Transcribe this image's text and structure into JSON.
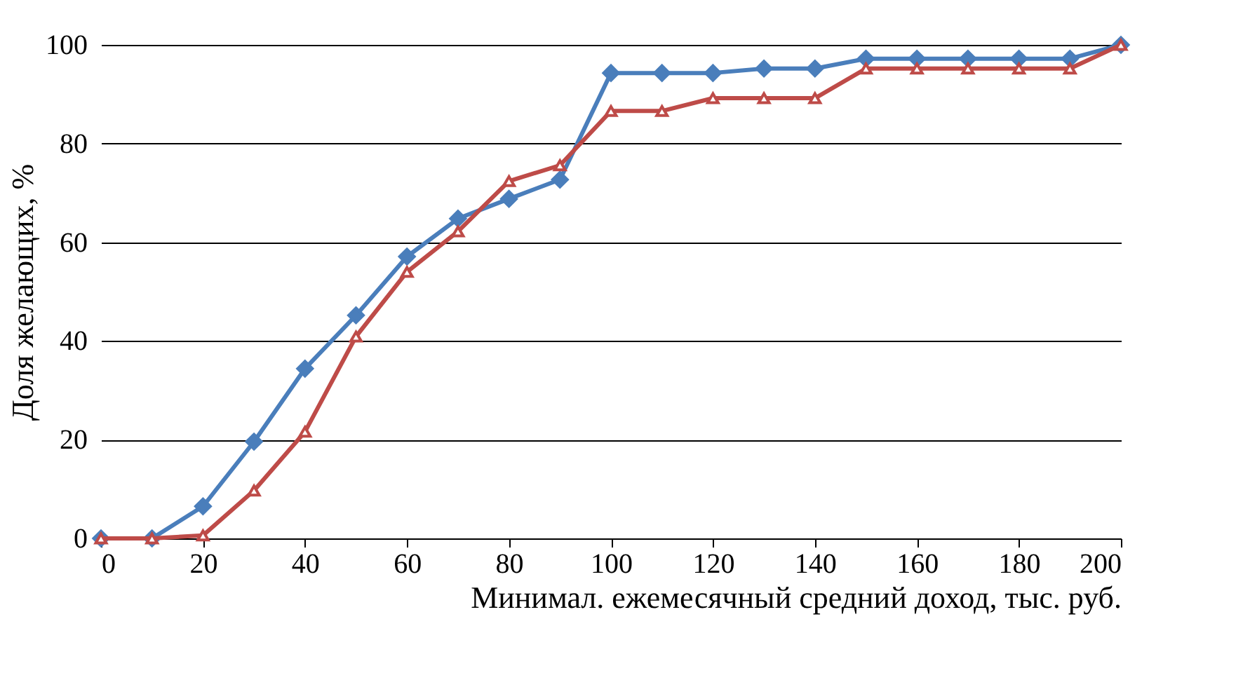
{
  "chart_data": {
    "type": "line",
    "xlabel": "Минимал. ежемесячный средний доход, тыс. руб.",
    "ylabel": "Доля желающих, %",
    "x": [
      0,
      10,
      20,
      30,
      40,
      50,
      60,
      70,
      80,
      90,
      100,
      110,
      120,
      130,
      140,
      150,
      160,
      170,
      180,
      190,
      200
    ],
    "series": [
      {
        "color": "#4a7ebb",
        "marker": "diamond",
        "values": [
          0,
          0,
          6.5,
          19.6,
          34.4,
          45.2,
          57.1,
          64.8,
          68.8,
          72.7,
          94.3,
          94.3,
          94.3,
          95.2,
          95.2,
          97.2,
          97.2,
          97.2,
          97.2,
          97.2,
          100
        ]
      },
      {
        "color": "#be4b48",
        "marker": "triangle",
        "values": [
          0,
          0,
          0.6,
          9.7,
          21.6,
          40.9,
          54,
          62.2,
          72.4,
          75.6,
          86.6,
          86.6,
          89.2,
          89.2,
          89.2,
          95.2,
          95.2,
          95.2,
          95.2,
          95.2,
          100
        ]
      }
    ],
    "xlim": [
      0,
      200
    ],
    "xticks": [
      0,
      20,
      40,
      60,
      80,
      100,
      120,
      140,
      160,
      180,
      200
    ],
    "ylim": [
      0,
      100
    ],
    "yticks": [
      0,
      20,
      40,
      60,
      80,
      100
    ],
    "grid": "y",
    "legend": false,
    "line_style": "solid"
  }
}
